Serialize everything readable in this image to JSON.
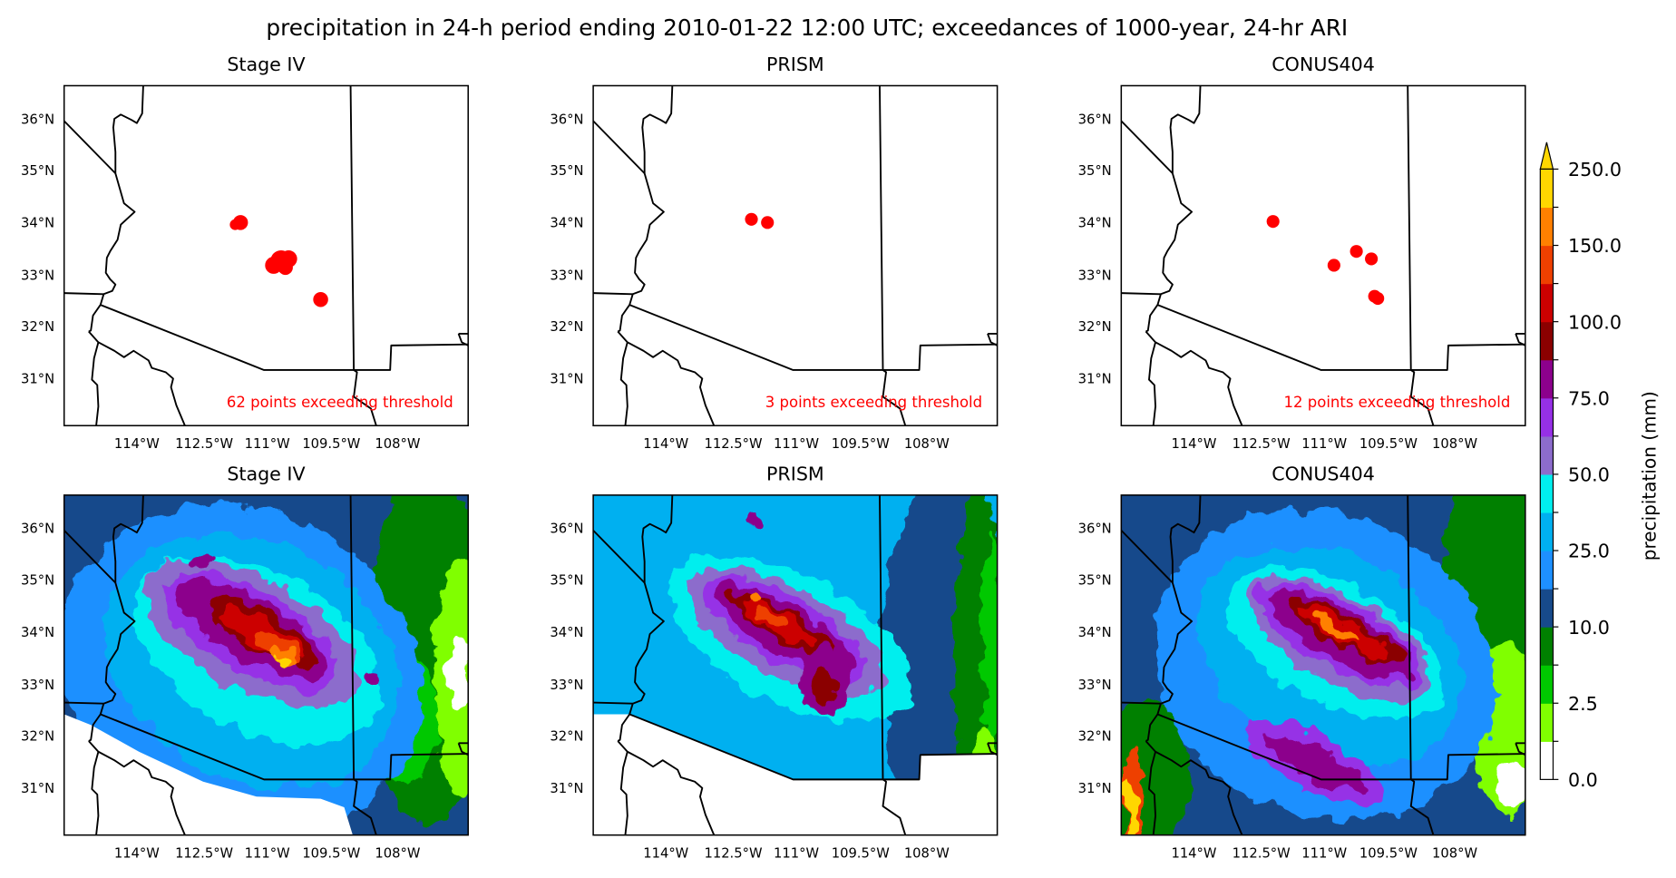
{
  "figure": {
    "title": "precipitation in 24-h period ending 2010-01-22 12:00 UTC; exceedances of 1000-year, 24-hr ARI"
  },
  "axes": {
    "lat_ticks": [
      "36°N",
      "35°N",
      "34°N",
      "33°N",
      "32°N",
      "31°N"
    ],
    "lon_ticks": [
      "114°W",
      "112.5°W",
      "111°W",
      "109.5°W",
      "108°W"
    ]
  },
  "panels": [
    {
      "title": "Stage IV",
      "kind": "exceedance",
      "count_text": "62 points exceeding threshold"
    },
    {
      "title": "PRISM",
      "kind": "exceedance",
      "count_text": "3 points exceeding threshold"
    },
    {
      "title": "CONUS404",
      "kind": "exceedance",
      "count_text": "12 points exceeding threshold"
    },
    {
      "title": "Stage IV",
      "kind": "precipitation"
    },
    {
      "title": "PRISM",
      "kind": "precipitation"
    },
    {
      "title": "CONUS404",
      "kind": "precipitation"
    }
  ],
  "exceedance_color": "#ff0000",
  "colorbar": {
    "label": "precipitation (mm)",
    "extend": "max",
    "tick_labels": [
      "0.0",
      "2.5",
      "10.0",
      "25.0",
      "50.0",
      "75.0",
      "100.0",
      "150.0",
      "250.0"
    ],
    "colors": [
      "#ffffff",
      "#80ff00",
      "#00c800",
      "#008000",
      "#174a8b",
      "#1e90ff",
      "#00b0f0",
      "#00eeee",
      "#8c6ccc",
      "#9630e6",
      "#8c008c",
      "#8b0000",
      "#cc0000",
      "#ee4000",
      "#ff8000",
      "#ffd700"
    ]
  }
}
